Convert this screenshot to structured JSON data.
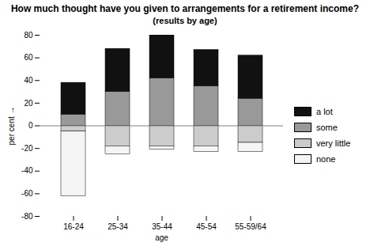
{
  "chart_data": {
    "type": "bar",
    "stacked": true,
    "title": "How much thought have you given to arrangements for a retirement income?",
    "subtitle": "(results by age)",
    "x_label": "age",
    "y_label": "per cent",
    "categories": [
      "16-24",
      "25-34",
      "35-44",
      "45-54",
      "55-59/64"
    ],
    "series": [
      {
        "name": "some",
        "color": "#999999",
        "values": [
          10,
          30,
          42,
          35,
          24
        ]
      },
      {
        "name": "a lot",
        "color": "#111111",
        "values": [
          28,
          38,
          38,
          32,
          38
        ]
      },
      {
        "name": "very little",
        "color": "#cccccc",
        "values": [
          -5,
          -18,
          -18,
          -18,
          -15
        ]
      },
      {
        "name": "none",
        "color": "#f5f5f5",
        "values": [
          -57,
          -7,
          -3,
          -5,
          -8
        ]
      }
    ],
    "ylim": [
      -80,
      80
    ],
    "yticks": [
      -80,
      -60,
      -40,
      -20,
      0,
      20,
      40,
      60,
      80
    ],
    "grid": false,
    "legend": "right"
  }
}
